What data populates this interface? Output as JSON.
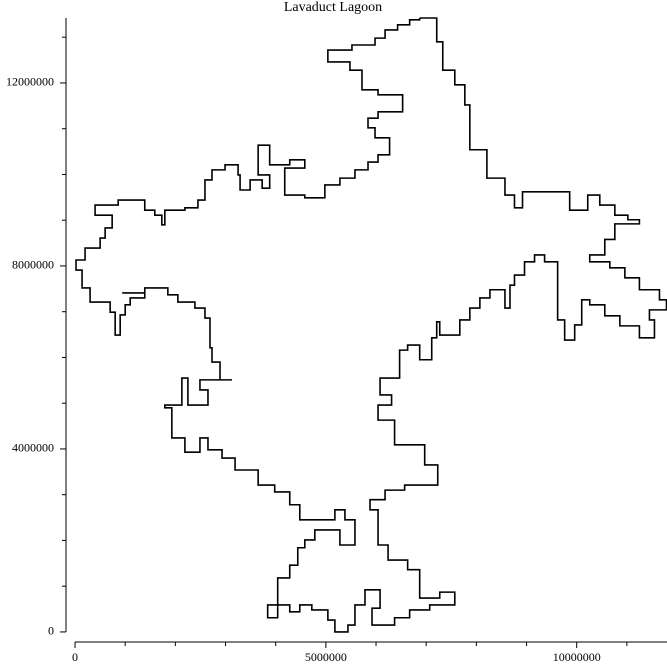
{
  "chart_data": {
    "type": "line",
    "title": "Lavaduct Lagoon",
    "x": [
      6870000.0,
      7210000.0,
      7210000.0,
      7330000.0,
      7330000.0,
      7570000.0,
      7570000.0,
      7770000.0,
      7770000.0,
      7870000.0,
      7870000.0,
      8210000.0,
      8210000.0,
      8570000.0,
      8570000.0,
      8760000.0,
      8760000.0,
      8920000.0,
      8920000.0,
      9860000.0,
      9860000.0,
      10220000.0,
      10220000.0,
      10460000.0,
      10460000.0,
      10760000.0,
      10760000.0,
      11020000.0,
      11020000.0,
      11250000.0,
      11250000.0,
      10760000.0,
      10760000.0,
      10560000.0,
      10560000.0,
      10260000.0,
      10260000.0,
      10660000.0,
      10660000.0,
      10960000.0,
      10960000.0,
      11250000.0,
      11250000.0,
      11650000.0,
      11650000.0,
      11790000.0,
      11790000.0,
      11450000.0,
      11450000.0,
      11550000.0,
      11550000.0,
      11250000.0,
      11250000.0,
      10860000.0,
      10860000.0,
      10560000.0,
      10560000.0,
      10260000.0,
      10260000.0,
      10100000.0,
      10100000.0,
      9960000.0,
      9960000.0,
      9760000.0,
      9760000.0,
      9620000.0,
      9620000.0,
      9360000.0,
      9360000.0,
      9160000.0,
      9160000.0,
      8960000.0,
      8960000.0,
      8760000.0,
      8760000.0,
      8670000.0,
      8670000.0,
      8570000.0,
      8570000.0,
      8270000.0,
      8270000.0,
      8070000.0,
      8070000.0,
      7870000.0,
      7870000.0,
      7670000.0,
      7670000.0,
      7270000.0,
      7270000.0,
      7210000.0,
      7210000.0,
      7110000.0,
      7110000.0,
      6870000.0,
      6870000.0,
      6630000.0,
      6630000.0,
      6470000.0,
      6470000.0,
      6080000.0,
      6080000.0,
      6310000.0,
      6310000.0,
      6040000.0,
      6040000.0,
      6370000.0,
      6370000.0,
      6970000.0,
      6970000.0,
      7230000.0,
      7230000.0,
      6570000.0,
      6570000.0,
      6180000.0,
      6180000.0,
      5880000.0,
      5880000.0,
      6040000.0,
      6040000.0,
      6240000.0,
      6240000.0,
      6630000.0,
      6630000.0,
      6870000.0,
      6870000.0,
      7270000.0,
      7270000.0,
      7570000.0,
      7570000.0,
      7070000.0,
      7070000.0,
      6670000.0,
      6670000.0,
      6370000.0,
      6370000.0,
      5920000.0,
      5920000.0,
      6080000.0,
      6080000.0,
      5780000.0,
      5780000.0,
      5580000.0,
      5580000.0,
      5440000.0,
      5440000.0,
      5180000.0,
      5180000.0,
      5040000.0,
      5040000.0,
      4720000.0,
      4720000.0,
      4480000.0,
      4480000.0,
      4280000.0,
      4280000.0,
      4040000.0,
      4040000.0,
      3840000.0,
      3840000.0,
      4040000.0,
      4040000.0,
      4280000.0,
      4280000.0,
      4440000.0,
      4440000.0,
      4580000.0,
      4580000.0,
      4780000.0,
      4780000.0,
      5280000.0,
      5280000.0,
      5580000.0,
      5580000.0,
      5380000.0,
      5380000.0,
      5180000.0,
      5180000.0,
      4480000.0,
      4480000.0,
      4280000.0,
      4280000.0,
      3980000.0,
      3980000.0,
      3650000.0,
      3650000.0,
      3190000.0,
      3190000.0,
      2930000.0,
      2930000.0,
      2650000.0,
      2650000.0,
      2490000.0,
      2490000.0,
      2190000.0,
      2190000.0,
      1930000.0,
      1930000.0,
      1790000.0,
      1790000.0,
      2130000.0,
      2130000.0,
      2250000.0,
      2250000.0,
      2650000.0,
      2650000.0,
      2490000.0,
      2490000.0,
      3130000.0,
      2890000.0,
      2890000.0,
      2730000.0,
      2730000.0,
      2690000.0,
      2690000.0,
      2590000.0,
      2590000.0,
      2390000.0,
      2390000.0,
      2050000.0,
      2050000.0,
      1850000.0,
      1850000.0,
      1390000.0,
      1390000.0,
      940000.0,
      1390000.0,
      1390000.0,
      1100000.0,
      1100000.0,
      1000000.0,
      1000000.0,
      900000.0,
      900000.0,
      800000.0,
      800000.0,
      700000.0,
      700000.0,
      300000.0,
      300000.0,
      140000.0,
      140000.0,
      20000.0,
      20000.0,
      200000.0,
      200000.0,
      500000.0,
      500000.0,
      600000.0,
      600000.0,
      740000.0,
      740000.0,
      400000.0,
      400000.0,
      860000.0,
      860000.0,
      1390000.0,
      1390000.0,
      1590000.0,
      1590000.0,
      1730000.0,
      1730000.0,
      1790000.0,
      1790000.0,
      2190000.0,
      2190000.0,
      2450000.0,
      2450000.0,
      2590000.0,
      2590000.0,
      2730000.0,
      2730000.0,
      2990000.0,
      2990000.0,
      3250000.0,
      3250000.0,
      3290000.0,
      3290000.0,
      3490000.0,
      3490000.0,
      3730000.0,
      3730000.0,
      3880000.0,
      3880000.0,
      3650000.0,
      3650000.0,
      3880000.0,
      3880000.0,
      4280000.0,
      4280000.0,
      4580000.0,
      4580000.0,
      4180000.0,
      4180000.0,
      4580000.0,
      4580000.0,
      4980000.0,
      4980000.0,
      5280000.0,
      5280000.0,
      5580000.0,
      5580000.0,
      5840000.0,
      5840000.0,
      6040000.0,
      6040000.0,
      6270000.0,
      6270000.0,
      5980000.0,
      5980000.0,
      5840000.0,
      5840000.0,
      6040000.0,
      6040000.0,
      6530000.0,
      6530000.0,
      6040000.0,
      6040000.0,
      5720000.0,
      5720000.0,
      5480000.0,
      5480000.0,
      5040000.0,
      5040000.0,
      5520000.0,
      5520000.0,
      5980000.0,
      5980000.0,
      6180000.0,
      6180000.0,
      6430000.0,
      6430000.0,
      6670000.0,
      6670000.0,
      6870000.0,
      6870000.0
    ],
    "series": [
      {
        "color": "#000000",
        "values": [
          13420000.0,
          13420000.0,
          12900000.0,
          12900000.0,
          12280000.0,
          12280000.0,
          11960000.0,
          11960000.0,
          11520000.0,
          11520000.0,
          10540000.0,
          10540000.0,
          9920000.0,
          9920000.0,
          9550000.0,
          9550000.0,
          9270000.0,
          9270000.0,
          9620000.0,
          9620000.0,
          9220000.0,
          9220000.0,
          9550000.0,
          9550000.0,
          9330000.0,
          9330000.0,
          9110000.0,
          9110000.0,
          9010000.0,
          9010000.0,
          8920000.0,
          8920000.0,
          8580000.0,
          8580000.0,
          8240000.0,
          8240000.0,
          8090000.0,
          8090000.0,
          7960000.0,
          7960000.0,
          7740000.0,
          7740000.0,
          7480000.0,
          7480000.0,
          7260000.0,
          7260000.0,
          7040000.0,
          7040000.0,
          6820000.0,
          6820000.0,
          6430000.0,
          6430000.0,
          6690000.0,
          6690000.0,
          6910000.0,
          6910000.0,
          7150000.0,
          7150000.0,
          7260000.0,
          7260000.0,
          6710000.0,
          6710000.0,
          6380000.0,
          6380000.0,
          6820000.0,
          6820000.0,
          8090000.0,
          8090000.0,
          8240000.0,
          8240000.0,
          8090000.0,
          8090000.0,
          7800000.0,
          7800000.0,
          7580000.0,
          7580000.0,
          7080000.0,
          7080000.0,
          7480000.0,
          7480000.0,
          7300000.0,
          7300000.0,
          7080000.0,
          7080000.0,
          6820000.0,
          6820000.0,
          6490000.0,
          6490000.0,
          6780000.0,
          6780000.0,
          6430000.0,
          6430000.0,
          5950000.0,
          5950000.0,
          6270000.0,
          6270000.0,
          6160000.0,
          6160000.0,
          5550000.0,
          5550000.0,
          5180000.0,
          5180000.0,
          4960000.0,
          4960000.0,
          4630000.0,
          4630000.0,
          4090000.0,
          4090000.0,
          3650000.0,
          3650000.0,
          3210000.0,
          3210000.0,
          3100000.0,
          3100000.0,
          2890000.0,
          2890000.0,
          2670000.0,
          2670000.0,
          1900000.0,
          1900000.0,
          1570000.0,
          1570000.0,
          1360000.0,
          1360000.0,
          740000.0,
          740000.0,
          870000.0,
          870000.0,
          590000.0,
          590000.0,
          480000.0,
          480000.0,
          310000.0,
          310000.0,
          150000.0,
          150000.0,
          520000.0,
          520000.0,
          920000.0,
          920000.0,
          590000.0,
          590000.0,
          150000.0,
          150000.0,
          0,
          0,
          260000.0,
          260000.0,
          480000.0,
          480000.0,
          590000.0,
          590000.0,
          440000.0,
          440000.0,
          590000.0,
          590000.0,
          310000.0,
          310000.0,
          590000.0,
          590000.0,
          1180000.0,
          1180000.0,
          1460000.0,
          1460000.0,
          1840000.0,
          1840000.0,
          2010000.0,
          2010000.0,
          2230000.0,
          2230000.0,
          1900000.0,
          1900000.0,
          2450000.0,
          2450000.0,
          2670000.0,
          2670000.0,
          2450000.0,
          2450000.0,
          2780000.0,
          2780000.0,
          3060000.0,
          3060000.0,
          3210000.0,
          3210000.0,
          3540000.0,
          3540000.0,
          3800000.0,
          3800000.0,
          3980000.0,
          3980000.0,
          4240000.0,
          4240000.0,
          3930000.0,
          3930000.0,
          4240000.0,
          4240000.0,
          4900000.0,
          4900000.0,
          4960000.0,
          4960000.0,
          5550000.0,
          5550000.0,
          4960000.0,
          4960000.0,
          5290000.0,
          5290000.0,
          5510000.0,
          5510000.0,
          5510000.0,
          5900000.0,
          5900000.0,
          6210000.0,
          6210000.0,
          6860000.0,
          6860000.0,
          7080000.0,
          7080000.0,
          7210000.0,
          7210000.0,
          7370000.0,
          7370000.0,
          7520000.0,
          7520000.0,
          7410000.0,
          7410000.0,
          7410000.0,
          7300000.0,
          7300000.0,
          7150000.0,
          7150000.0,
          6930000.0,
          6930000.0,
          6490000.0,
          6490000.0,
          6990000.0,
          6990000.0,
          7210000.0,
          7210000.0,
          7520000.0,
          7520000.0,
          7910000.0,
          7910000.0,
          8130000.0,
          8130000.0,
          8390000.0,
          8390000.0,
          8610000.0,
          8610000.0,
          8830000.0,
          8830000.0,
          9110000.0,
          9110000.0,
          9330000.0,
          9330000.0,
          9440000.0,
          9440000.0,
          9220000.0,
          9220000.0,
          9110000.0,
          9110000.0,
          8900000.0,
          8900000.0,
          9220000.0,
          9220000.0,
          9270000.0,
          9270000.0,
          9440000.0,
          9440000.0,
          9880000.0,
          9880000.0,
          10100000.0,
          10100000.0,
          10210000.0,
          10210000.0,
          9990000.0,
          9990000.0,
          9660000.0,
          9660000.0,
          9880000.0,
          9880000.0,
          9700000.0,
          9700000.0,
          9990000.0,
          9990000.0,
          10640000.0,
          10640000.0,
          10210000.0,
          10210000.0,
          10320000.0,
          10320000.0,
          10140000.0,
          10140000.0,
          9550000.0,
          9550000.0,
          9490000.0,
          9490000.0,
          9770000.0,
          9770000.0,
          9920000.0,
          9920000.0,
          10100000.0,
          10100000.0,
          10270000.0,
          10270000.0,
          10430000.0,
          10430000.0,
          10800000.0,
          10800000.0,
          11020000.0,
          11020000.0,
          11230000.0,
          11230000.0,
          11370000.0,
          11370000.0,
          11740000.0,
          11740000.0,
          11850000.0,
          11850000.0,
          12280000.0,
          12280000.0,
          12460000.0,
          12460000.0,
          12720000.0,
          12720000.0,
          12830000.0,
          12830000.0,
          12980000.0,
          12980000.0,
          13160000.0,
          13160000.0,
          13270000.0,
          13270000.0,
          13380000.0,
          13380000.0,
          13420000.0
        ]
      }
    ],
    "xlim": [
      -180000,
      11800000
    ],
    "ylim": [
      -220000,
      13420000
    ],
    "xticks": [
      0,
      5000000,
      10000000
    ],
    "yticks": [
      0,
      4000000,
      8000000,
      12000000
    ],
    "xticks_minor": [
      1000000,
      2000000,
      3000000,
      4000000,
      6000000,
      7000000,
      8000000,
      9000000,
      11000000
    ],
    "yticks_minor": [
      1000000,
      2000000,
      3000000,
      5000000,
      6000000,
      7000000,
      9000000,
      10000000,
      11000000,
      13000000
    ],
    "grid": false
  }
}
